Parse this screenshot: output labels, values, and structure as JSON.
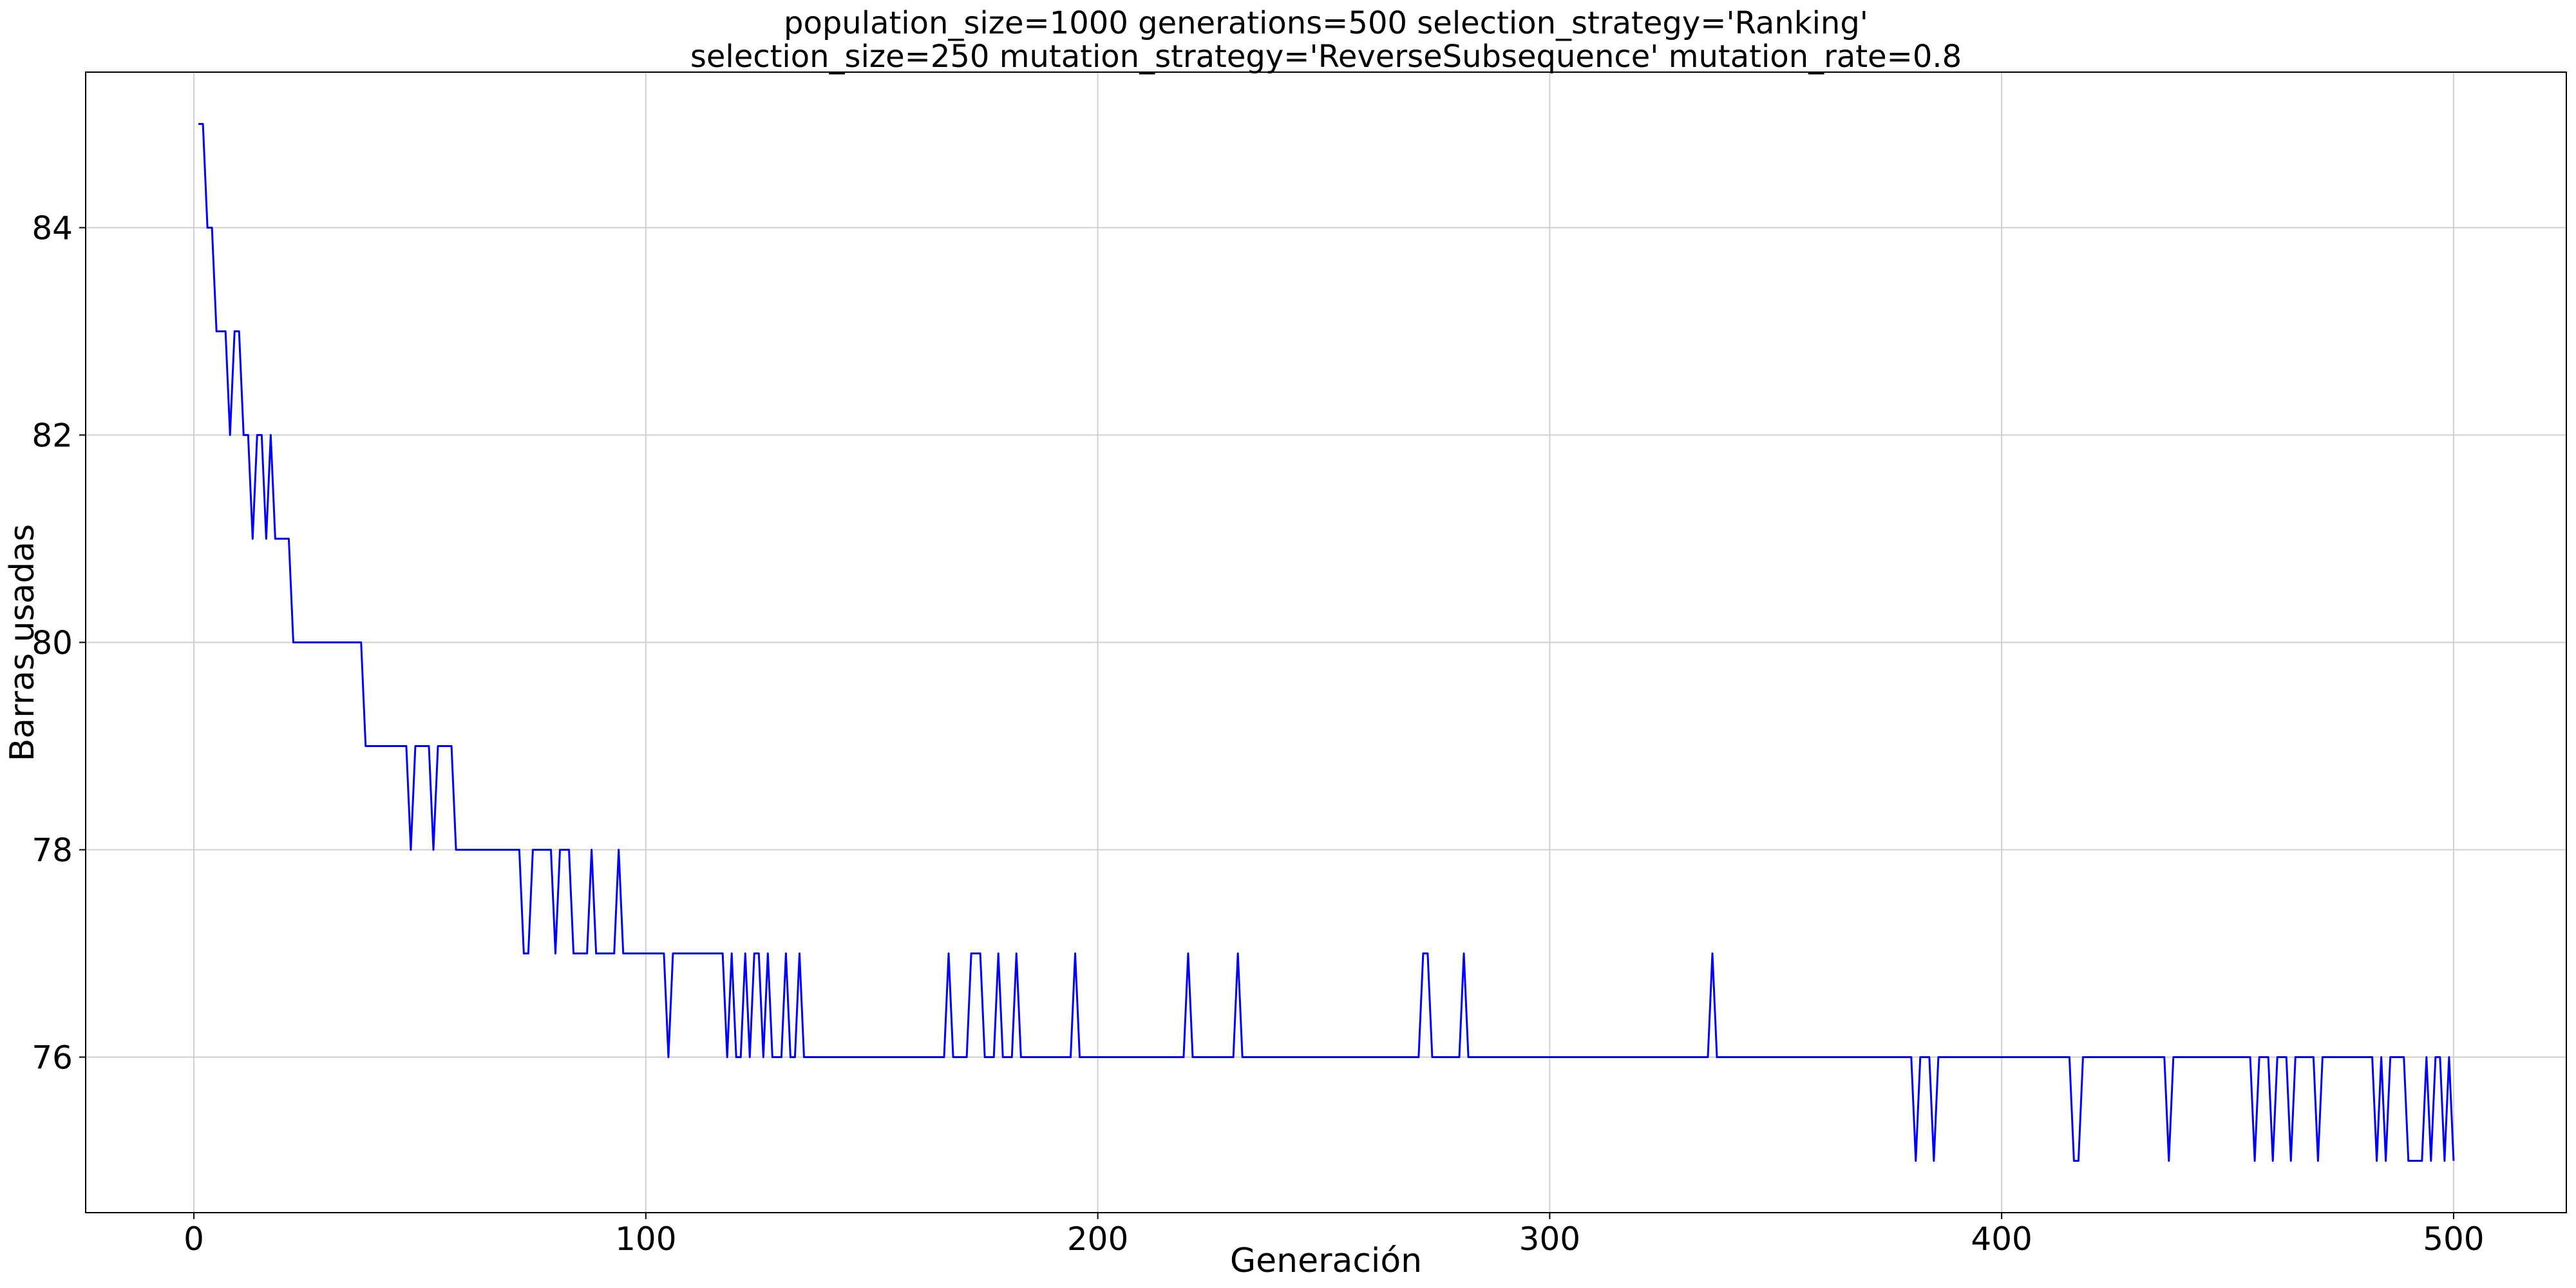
{
  "chart_data": {
    "type": "line",
    "title": [
      "population_size=1000 generations=500 selection_strategy='Ranking'",
      "selection_size=250 mutation_strategy='ReverseSubsequence' mutation_rate=0.8"
    ],
    "xlabel": "Generación",
    "ylabel": "Barras usadas",
    "color": "#0000ff",
    "grid": true,
    "xlim": [
      -23.95,
      524.95
    ],
    "ylim": [
      74.5,
      85.5
    ],
    "xticks": [
      0,
      100,
      200,
      300,
      400,
      500
    ],
    "yticks": [
      76,
      78,
      80,
      82,
      84
    ],
    "x": [
      1,
      2,
      3,
      4,
      5,
      6,
      7,
      8,
      9,
      10,
      11,
      12,
      13,
      14,
      15,
      16,
      17,
      18,
      19,
      20,
      21,
      22,
      23,
      24,
      25,
      26,
      27,
      28,
      29,
      30,
      31,
      32,
      33,
      34,
      35,
      36,
      37,
      38,
      39,
      40,
      41,
      42,
      43,
      44,
      45,
      46,
      47,
      48,
      49,
      50,
      51,
      52,
      53,
      54,
      55,
      56,
      57,
      58,
      59,
      60,
      61,
      62,
      63,
      64,
      65,
      66,
      67,
      68,
      69,
      70,
      71,
      72,
      73,
      74,
      75,
      76,
      77,
      78,
      79,
      80,
      81,
      82,
      83,
      84,
      85,
      86,
      87,
      88,
      89,
      90,
      91,
      92,
      93,
      94,
      95,
      96,
      97,
      98,
      99,
      100,
      101,
      102,
      103,
      104,
      105,
      106,
      107,
      108,
      109,
      110,
      111,
      112,
      113,
      114,
      115,
      116,
      117,
      118,
      119,
      120,
      121,
      122,
      123,
      124,
      125,
      126,
      127,
      128,
      129,
      130,
      131,
      132,
      133,
      134,
      135,
      136,
      137,
      138,
      139,
      140,
      141,
      142,
      143,
      144,
      145,
      146,
      147,
      148,
      149,
      150,
      151,
      152,
      153,
      154,
      155,
      156,
      157,
      158,
      159,
      160,
      161,
      162,
      163,
      164,
      165,
      166,
      167,
      168,
      169,
      170,
      171,
      172,
      173,
      174,
      175,
      176,
      177,
      178,
      179,
      180,
      181,
      182,
      183,
      184,
      185,
      186,
      187,
      188,
      189,
      190,
      191,
      192,
      193,
      194,
      195,
      196,
      197,
      198,
      199,
      200,
      201,
      202,
      203,
      204,
      205,
      206,
      207,
      208,
      209,
      210,
      211,
      212,
      213,
      214,
      215,
      216,
      217,
      218,
      219,
      220,
      221,
      222,
      223,
      224,
      225,
      226,
      227,
      228,
      229,
      230,
      231,
      232,
      233,
      234,
      235,
      236,
      237,
      238,
      239,
      240,
      241,
      242,
      243,
      244,
      245,
      246,
      247,
      248,
      249,
      250,
      251,
      252,
      253,
      254,
      255,
      256,
      257,
      258,
      259,
      260,
      261,
      262,
      263,
      264,
      265,
      266,
      267,
      268,
      269,
      270,
      271,
      272,
      273,
      274,
      275,
      276,
      277,
      278,
      279,
      280,
      281,
      282,
      283,
      284,
      285,
      286,
      287,
      288,
      289,
      290,
      291,
      292,
      293,
      294,
      295,
      296,
      297,
      298,
      299,
      300,
      301,
      302,
      303,
      304,
      305,
      306,
      307,
      308,
      309,
      310,
      311,
      312,
      313,
      314,
      315,
      316,
      317,
      318,
      319,
      320,
      321,
      322,
      323,
      324,
      325,
      326,
      327,
      328,
      329,
      330,
      331,
      332,
      333,
      334,
      335,
      336,
      337,
      338,
      339,
      340,
      341,
      342,
      343,
      344,
      345,
      346,
      347,
      348,
      349,
      350,
      351,
      352,
      353,
      354,
      355,
      356,
      357,
      358,
      359,
      360,
      361,
      362,
      363,
      364,
      365,
      366,
      367,
      368,
      369,
      370,
      371,
      372,
      373,
      374,
      375,
      376,
      377,
      378,
      379,
      380,
      381,
      382,
      383,
      384,
      385,
      386,
      387,
      388,
      389,
      390,
      391,
      392,
      393,
      394,
      395,
      396,
      397,
      398,
      399,
      400,
      401,
      402,
      403,
      404,
      405,
      406,
      407,
      408,
      409,
      410,
      411,
      412,
      413,
      414,
      415,
      416,
      417,
      418,
      419,
      420,
      421,
      422,
      423,
      424,
      425,
      426,
      427,
      428,
      429,
      430,
      431,
      432,
      433,
      434,
      435,
      436,
      437,
      438,
      439,
      440,
      441,
      442,
      443,
      444,
      445,
      446,
      447,
      448,
      449,
      450,
      451,
      452,
      453,
      454,
      455,
      456,
      457,
      458,
      459,
      460,
      461,
      462,
      463,
      464,
      465,
      466,
      467,
      468,
      469,
      470,
      471,
      472,
      473,
      474,
      475,
      476,
      477,
      478,
      479,
      480,
      481,
      482,
      483,
      484,
      485,
      486,
      487,
      488,
      489,
      490,
      491,
      492,
      493,
      494,
      495,
      496,
      497,
      498,
      499,
      500
    ],
    "values": [
      85,
      85,
      84,
      84,
      83,
      83,
      83,
      82,
      83,
      83,
      82,
      82,
      81,
      82,
      82,
      81,
      82,
      81,
      81,
      81,
      81,
      80,
      80,
      80,
      80,
      80,
      80,
      80,
      80,
      80,
      80,
      80,
      80,
      80,
      80,
      80,
      80,
      79,
      79,
      79,
      79,
      79,
      79,
      79,
      79,
      79,
      79,
      78,
      79,
      79,
      79,
      79,
      78,
      79,
      79,
      79,
      79,
      78,
      78,
      78,
      78,
      78,
      78,
      78,
      78,
      78,
      78,
      78,
      78,
      78,
      78,
      78,
      77,
      77,
      78,
      78,
      78,
      78,
      78,
      77,
      78,
      78,
      78,
      77,
      77,
      77,
      77,
      78,
      77,
      77,
      77,
      77,
      77,
      78,
      77,
      77,
      77,
      77,
      77,
      77,
      77,
      77,
      77,
      77,
      76,
      77,
      77,
      77,
      77,
      77,
      77,
      77,
      77,
      77,
      77,
      77,
      77,
      76,
      77,
      76,
      76,
      77,
      76,
      77,
      77,
      76,
      77,
      76,
      76,
      76,
      77,
      76,
      76,
      77,
      76,
      76,
      76,
      76,
      76,
      76,
      76,
      76,
      76,
      76,
      76,
      76,
      76,
      76,
      76,
      76,
      76,
      76,
      76,
      76,
      76,
      76,
      76,
      76,
      76,
      76,
      76,
      76,
      76,
      76,
      76,
      76,
      77,
      76,
      76,
      76,
      76,
      77,
      77,
      77,
      76,
      76,
      76,
      77,
      76,
      76,
      76,
      77,
      76,
      76,
      76,
      76,
      76,
      76,
      76,
      76,
      76,
      76,
      76,
      76,
      77,
      76,
      76,
      76,
      76,
      76,
      76,
      76,
      76,
      76,
      76,
      76,
      76,
      76,
      76,
      76,
      76,
      76,
      76,
      76,
      76,
      76,
      76,
      76,
      76,
      77,
      76,
      76,
      76,
      76,
      76,
      76,
      76,
      76,
      76,
      76,
      77,
      76,
      76,
      76,
      76,
      76,
      76,
      76,
      76,
      76,
      76,
      76,
      76,
      76,
      76,
      76,
      76,
      76,
      76,
      76,
      76,
      76,
      76,
      76,
      76,
      76,
      76,
      76,
      76,
      76,
      76,
      76,
      76,
      76,
      76,
      76,
      76,
      76,
      76,
      76,
      76,
      77,
      77,
      76,
      76,
      76,
      76,
      76,
      76,
      76,
      77,
      76,
      76,
      76,
      76,
      76,
      76,
      76,
      76,
      76,
      76,
      76,
      76,
      76,
      76,
      76,
      76,
      76,
      76,
      76,
      76,
      76,
      76,
      76,
      76,
      76,
      76,
      76,
      76,
      76,
      76,
      76,
      76,
      76,
      76,
      76,
      76,
      76,
      76,
      76,
      76,
      76,
      76,
      76,
      76,
      76,
      76,
      76,
      76,
      76,
      76,
      76,
      76,
      76,
      76,
      77,
      76,
      76,
      76,
      76,
      76,
      76,
      76,
      76,
      76,
      76,
      76,
      76,
      76,
      76,
      76,
      76,
      76,
      76,
      76,
      76,
      76,
      76,
      76,
      76,
      76,
      76,
      76,
      76,
      76,
      76,
      76,
      76,
      76,
      76,
      76,
      76,
      76,
      76,
      76,
      76,
      76,
      76,
      76,
      76,
      75,
      76,
      76,
      76,
      75,
      76,
      76,
      76,
      76,
      76,
      76,
      76,
      76,
      76,
      76,
      76,
      76,
      76,
      76,
      76,
      76,
      76,
      76,
      76,
      76,
      76,
      76,
      76,
      76,
      76,
      76,
      76,
      76,
      76,
      76,
      75,
      75,
      76,
      76,
      76,
      76,
      76,
      76,
      76,
      76,
      76,
      76,
      76,
      76,
      76,
      76,
      76,
      76,
      76,
      76,
      76,
      75,
      76,
      76,
      76,
      76,
      76,
      76,
      76,
      76,
      76,
      76,
      76,
      76,
      76,
      76,
      76,
      76,
      76,
      76,
      75,
      76,
      76,
      76,
      75,
      76,
      76,
      76,
      75,
      76,
      76,
      76,
      76,
      76,
      75,
      76,
      76,
      76,
      76,
      76,
      76,
      76,
      76,
      76,
      76,
      76,
      76,
      75,
      76,
      75,
      76,
      76,
      76,
      76,
      75,
      75,
      75,
      75,
      76,
      75,
      76,
      76,
      75,
      76,
      75
    ]
  }
}
